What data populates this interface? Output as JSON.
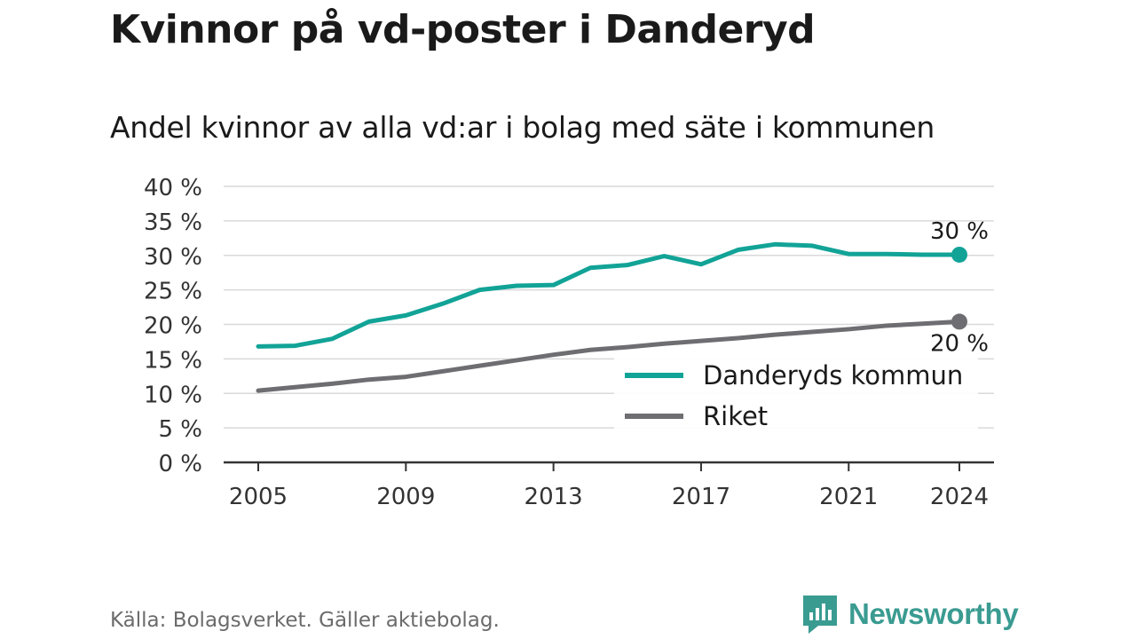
{
  "title": "Kvinnor på vd-poster i Danderyd",
  "subtitle": "Andel kvinnor av alla vd:ar i bolag med säte i kommunen",
  "source": "Källa: Bolagsverket. Gäller aktiebolag.",
  "brand": {
    "name": "Newsworthy"
  },
  "colors": {
    "danderyd": "#12a397",
    "riket": "#6e6e72",
    "grid": "#d9d9d9",
    "axis": "#333333"
  },
  "chart_data": {
    "type": "line",
    "x": [
      2005,
      2006,
      2007,
      2008,
      2009,
      2010,
      2011,
      2012,
      2013,
      2014,
      2015,
      2016,
      2017,
      2018,
      2019,
      2020,
      2021,
      2022,
      2023,
      2024
    ],
    "x_ticks": [
      "2005",
      "2009",
      "2013",
      "2017",
      "2021",
      "2024"
    ],
    "y_ticks": [
      "0 %",
      "5 %",
      "10 %",
      "15 %",
      "20 %",
      "25 %",
      "30 %",
      "35 %",
      "40 %"
    ],
    "ylim": [
      0,
      40
    ],
    "grid": true,
    "legend_position": "bottom-right",
    "series": [
      {
        "name": "Danderyds kommun",
        "values": [
          16.8,
          16.9,
          17.9,
          20.4,
          21.3,
          23.0,
          25.0,
          25.6,
          25.7,
          28.2,
          28.6,
          29.9,
          28.7,
          30.8,
          31.6,
          31.4,
          30.2,
          30.2,
          30.1,
          30.1
        ],
        "end_label": "30 %"
      },
      {
        "name": "Riket",
        "values": [
          10.4,
          10.9,
          11.4,
          12.0,
          12.4,
          13.2,
          14.0,
          14.8,
          15.6,
          16.3,
          16.7,
          17.2,
          17.6,
          18.0,
          18.5,
          18.9,
          19.3,
          19.8,
          20.1,
          20.4
        ],
        "end_label": "20 %"
      }
    ]
  }
}
